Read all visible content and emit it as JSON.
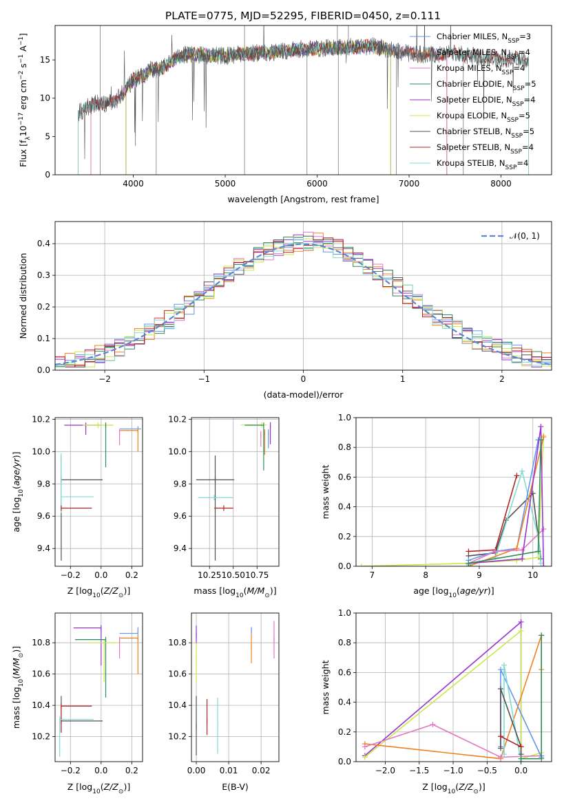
{
  "title": "PLATE=0775, MJD=52295, FIBERID=0450, z=0.111",
  "colors": {
    "Chabrier MILES": "#6495ed",
    "Salpeter MILES": "#f0801e",
    "Kroupa MILES": "#e377c2",
    "Chabrier ELODIE": "#2e8b57",
    "Salpeter ELODIE": "#9932cc",
    "Kroupa ELODIE": "#c9e84a",
    "Chabrier STELIB": "#505050",
    "Salpeter STELIB": "#b22222",
    "Kroupa STELIB": "#7fdbd4"
  },
  "chart_data": [
    {
      "type": "line",
      "name": "spectrum",
      "xlabel": "wavelength [Angstrom, rest frame]",
      "ylabel": "Flux [f_λ 10^-17 erg cm^-2 s^-1 A^-1]",
      "xlim": [
        3150,
        8550
      ],
      "ylim": [
        0,
        19.5
      ],
      "xticks": [
        "4000",
        "5000",
        "6000",
        "7000",
        "8000"
      ],
      "yticks": [
        "0",
        "5",
        "10",
        "15"
      ],
      "grid": false,
      "legend_position": "right",
      "series": [
        {
          "name": "Chabrier MILES, N_SSP=3"
        },
        {
          "name": "Salpeter MILES, N_SSP=4"
        },
        {
          "name": "Kroupa MILES, N_SSP=4"
        },
        {
          "name": "Chabrier ELODIE, N_SSP=5"
        },
        {
          "name": "Salpeter ELODIE, N_SSP=4"
        },
        {
          "name": "Kroupa ELODIE, N_SSP=5"
        },
        {
          "name": "Chabrier STELIB, N_SSP=5"
        },
        {
          "name": "Salpeter STELIB, N_SSP=4"
        },
        {
          "name": "Kroupa STELIB, N_SSP=4"
        }
      ],
      "continuum": {
        "x": [
          3400,
          3500,
          3600,
          3700,
          3800,
          3900,
          4000,
          4100,
          4200,
          4300,
          4400,
          4500,
          4600,
          4800,
          5000,
          5200,
          5500,
          5800,
          6000,
          6300,
          6600,
          6800,
          7000,
          7200,
          7500,
          7800,
          8000,
          8300
        ],
        "y": [
          8.0,
          8.8,
          9.4,
          9.2,
          9.6,
          10.8,
          12.4,
          12.9,
          13.8,
          13.9,
          14.6,
          15.4,
          15.8,
          15.6,
          15.5,
          15.8,
          16.0,
          16.4,
          16.5,
          16.6,
          16.8,
          16.3,
          15.8,
          15.7,
          15.8,
          15.3,
          15.2,
          15.0
        ]
      }
    },
    {
      "type": "step",
      "name": "residual histogram",
      "xlabel": "(data-model)/error",
      "ylabel": "Normed distribution",
      "xlim": [
        -2.5,
        2.5
      ],
      "ylim": [
        0,
        0.47
      ],
      "xticks": [
        "−2",
        "−1",
        "0",
        "1",
        "2"
      ],
      "yticks": [
        "0.0",
        "0.1",
        "0.2",
        "0.3",
        "0.4"
      ],
      "grid": true,
      "legend": "𝒩(0, 1)",
      "legend_position": "top-right",
      "normal_curve": {
        "mean": 0,
        "sigma": 1
      }
    },
    {
      "type": "errorbar",
      "name": "age vs metallicity",
      "xlabel": "Z [log₁₀(Z/Z☉)]",
      "ylabel": "age  [log₁₀(age/yr)]",
      "xlim": [
        -0.3,
        0.27
      ],
      "ylim": [
        9.29,
        10.21
      ],
      "xticks": [
        "−0.2",
        "0.0",
        "0.2"
      ],
      "yticks": [
        "9.4",
        "9.6",
        "9.8",
        "10.0",
        "10.2"
      ],
      "grid": true,
      "points": [
        {
          "model": "Salpeter ELODIE",
          "x": -0.1,
          "xerr": [
            0.14,
            0.1
          ],
          "y": 10.163,
          "yerr": [
            0.06,
            0.0
          ]
        },
        {
          "model": "Kroupa ELODIE",
          "x": -0.02,
          "xerr": [
            0.1,
            0.1
          ],
          "y": 10.163,
          "yerr": [
            0.0,
            0.0
          ]
        },
        {
          "model": "Chabrier ELODIE",
          "x": 0.03,
          "xerr": [
            0.0,
            0.0
          ],
          "y": 10.163,
          "yerr": [
            0.26,
            0.0
          ]
        },
        {
          "model": "Chabrier MILES",
          "x": 0.24,
          "xerr": [
            0.12,
            0.02
          ],
          "y": 10.14,
          "yerr": [
            0.0,
            0.0
          ]
        },
        {
          "model": "Salpeter MILES",
          "x": 0.24,
          "xerr": [
            0.12,
            0.0
          ],
          "y": 10.13,
          "yerr": [
            0.13,
            0.0
          ]
        },
        {
          "model": "Kroupa MILES",
          "x": 0.12,
          "xerr": [
            0.0,
            0.0
          ],
          "y": 10.12,
          "yerr": [
            0.08,
            0.0
          ]
        },
        {
          "model": "Chabrier STELIB",
          "x": -0.26,
          "xerr": [
            0.0,
            0.27
          ],
          "y": 9.825,
          "yerr": [
            0.5,
            0.15
          ]
        },
        {
          "model": "Kroupa STELIB",
          "x": -0.26,
          "xerr": [
            0.0,
            0.21
          ],
          "y": 9.72,
          "yerr": [
            0.1,
            0.27
          ]
        },
        {
          "model": "Salpeter STELIB",
          "x": -0.26,
          "xerr": [
            0.0,
            0.2
          ],
          "y": 9.65,
          "yerr": [
            0.0,
            0.0
          ]
        }
      ]
    },
    {
      "type": "errorbar",
      "name": "age vs mass",
      "xlabel": "mass [log₁₀(M/M☉)]",
      "ylabel": "",
      "xlim": [
        10.06,
        10.98
      ],
      "ylim": [
        9.29,
        10.21
      ],
      "xticks": [
        "10.25",
        "10.50",
        "10.75"
      ],
      "yticks": [
        "9.4",
        "9.6",
        "9.8",
        "10.0",
        "10.2"
      ],
      "grid": true,
      "points": [
        {
          "model": "Salpeter ELODIE",
          "x": 10.89,
          "xerr": [
            0.0,
            0.0
          ],
          "y": 10.165,
          "yerr": [
            0.12,
            0.0
          ]
        },
        {
          "model": "Kroupa ELODIE",
          "x": 10.8,
          "xerr": [
            0.22,
            0.05
          ],
          "y": 10.165,
          "yerr": [
            0.0,
            0.0
          ]
        },
        {
          "model": "Chabrier ELODIE",
          "x": 10.82,
          "xerr": [
            0.2,
            0.0
          ],
          "y": 10.163,
          "yerr": [
            0.28,
            0.0
          ]
        },
        {
          "model": "Salpeter MILES",
          "x": 10.83,
          "xerr": [
            0.0,
            0.0
          ],
          "y": 10.12,
          "yerr": [
            0.14,
            0.0
          ]
        },
        {
          "model": "Chabrier MILES",
          "x": 10.87,
          "xerr": [
            0.0,
            0.0
          ],
          "y": 10.12,
          "yerr": [
            0.1,
            0.0
          ]
        },
        {
          "model": "Kroupa MILES",
          "x": 10.79,
          "xerr": [
            0.0,
            0.0
          ],
          "y": 10.11,
          "yerr": [
            0.08,
            0.0
          ]
        },
        {
          "model": "Chabrier STELIB",
          "x": 10.31,
          "xerr": [
            0.2,
            0.2
          ],
          "y": 9.825,
          "yerr": [
            0.5,
            0.15
          ]
        },
        {
          "model": "Kroupa STELIB",
          "x": 10.3,
          "xerr": [
            0.17,
            0.2
          ],
          "y": 9.715,
          "yerr": [
            0.0,
            0.0
          ]
        },
        {
          "model": "Salpeter STELIB",
          "x": 10.4,
          "xerr": [
            0.1,
            0.1
          ],
          "y": 9.65,
          "yerr": [
            0.0,
            0.0
          ]
        }
      ]
    },
    {
      "type": "line",
      "name": "mass weight vs age",
      "xlabel": "age  [log₁₀(age/yr)]",
      "ylabel": "mass weight",
      "xlim": [
        6.7,
        10.35
      ],
      "ylim": [
        0,
        1.0
      ],
      "xticks": [
        "7",
        "8",
        "9",
        "10"
      ],
      "yticks": [
        "0.0",
        "0.2",
        "0.4",
        "0.6",
        "0.8",
        "1.0"
      ],
      "grid": true,
      "series": [
        {
          "model": "Kroupa ELODIE",
          "x": [
            6.8,
            8.8,
            9.7,
            10.1,
            10.2
          ],
          "y": [
            0.0,
            0.02,
            0.04,
            0.06,
            0.88
          ]
        },
        {
          "model": "Salpeter STELIB",
          "x": [
            8.8,
            9.3,
            9.7
          ],
          "y": [
            0.1,
            0.11,
            0.61
          ]
        },
        {
          "model": "Chabrier STELIB",
          "x": [
            8.8,
            9.3,
            9.5,
            10.0,
            10.15
          ],
          "y": [
            0.07,
            0.09,
            0.31,
            0.49,
            0.05
          ]
        },
        {
          "model": "Kroupa STELIB",
          "x": [
            8.8,
            9.3,
            9.8,
            10.1,
            10.15
          ],
          "y": [
            0.01,
            0.06,
            0.64,
            0.2,
            0.02
          ]
        },
        {
          "model": "Chabrier MILES",
          "x": [
            8.8,
            9.3,
            9.7,
            10.1
          ],
          "y": [
            0.04,
            0.1,
            0.12,
            0.85
          ]
        },
        {
          "model": "Salpeter MILES",
          "x": [
            8.8,
            9.7,
            10.2
          ],
          "y": [
            0.0,
            0.12,
            0.87
          ]
        },
        {
          "model": "Kroupa MILES",
          "x": [
            8.8,
            9.3,
            9.8,
            10.2
          ],
          "y": [
            0.02,
            0.1,
            0.11,
            0.25
          ]
        },
        {
          "model": "Salpeter ELODIE",
          "x": [
            8.8,
            9.8,
            10.15,
            10.2
          ],
          "y": [
            0.02,
            0.05,
            0.94,
            0.0
          ]
        },
        {
          "model": "Chabrier ELODIE",
          "x": [
            8.8,
            10.1,
            10.15
          ],
          "y": [
            0.02,
            0.1,
            0.85
          ]
        }
      ]
    },
    {
      "type": "errorbar",
      "name": "mass vs metallicity",
      "xlabel": "Z [log₁₀(Z/Z☉)]",
      "ylabel": "mass [log₁₀(M/M☉)]",
      "xlim": [
        -0.3,
        0.27
      ],
      "ylim": [
        10.04,
        10.99
      ],
      "xticks": [
        "−0.2",
        "0.0",
        "0.2"
      ],
      "yticks": [
        "10.2",
        "10.4",
        "10.6",
        "10.8"
      ],
      "grid": true,
      "points": [
        {
          "model": "Salpeter ELODIE",
          "x": -0.0,
          "xerr": [
            0.18,
            0.0
          ],
          "y": 10.895,
          "yerr": [
            0.24,
            0.0
          ]
        },
        {
          "model": "Chabrier MILES",
          "x": 0.24,
          "xerr": [
            0.12,
            0.0
          ],
          "y": 10.86,
          "yerr": [
            0.0,
            0.04
          ]
        },
        {
          "model": "Salpeter MILES",
          "x": 0.24,
          "xerr": [
            0.12,
            0.0
          ],
          "y": 10.83,
          "yerr": [
            0.23,
            0.0
          ]
        },
        {
          "model": "Chabrier ELODIE",
          "x": 0.03,
          "xerr": [
            0.2,
            0.0
          ],
          "y": 10.82,
          "yerr": [
            0.37,
            0.0
          ]
        },
        {
          "model": "Kroupa ELODIE",
          "x": 0.02,
          "xerr": [
            0.1,
            0.1
          ],
          "y": 10.8,
          "yerr": [
            0.25,
            0.0
          ]
        },
        {
          "model": "Kroupa MILES",
          "x": 0.12,
          "xerr": [
            0.0,
            0.0
          ],
          "y": 10.82,
          "yerr": [
            0.12,
            0.0
          ]
        },
        {
          "model": "Chabrier STELIB",
          "x": -0.26,
          "xerr": [
            0.0,
            0.27
          ],
          "y": 10.3,
          "yerr": [
            0.07,
            0.16
          ]
        },
        {
          "model": "Salpeter STELIB",
          "x": -0.26,
          "xerr": [
            0.0,
            0.2
          ],
          "y": 10.395,
          "yerr": [
            0.17,
            0.0
          ]
        },
        {
          "model": "Kroupa STELIB",
          "x": -0.27,
          "xerr": [
            0.0,
            0.22
          ],
          "y": 10.31,
          "yerr": [
            0.24,
            0.0
          ]
        }
      ]
    },
    {
      "type": "errorbar",
      "name": "mass vs extinction",
      "xlabel": "E(B-V)",
      "ylabel": "",
      "xlim": [
        -0.0015,
        0.0255
      ],
      "ylim": [
        10.04,
        10.99
      ],
      "xticks": [
        "0.00",
        "0.01",
        "0.02"
      ],
      "yticks": [
        "10.2",
        "10.4",
        "10.6",
        "10.8"
      ],
      "grid": true,
      "points": [
        {
          "model": "Salpeter ELODIE",
          "x": 0.0,
          "y": 10.85,
          "yerr": [
            0.06,
            0.06
          ]
        },
        {
          "model": "Kroupa ELODIE",
          "x": 0.0,
          "y": 10.7,
          "yerr": [
            0.15,
            0.1
          ]
        },
        {
          "model": "Chabrier STELIB",
          "x": 0.0,
          "y": 10.27,
          "yerr": [
            0.19,
            0.19
          ]
        },
        {
          "model": "Salpeter STELIB",
          "x": 0.0033,
          "y": 10.3,
          "yerr": [
            0.09,
            0.14
          ]
        },
        {
          "model": "Kroupa STELIB",
          "x": 0.0066,
          "y": 10.27,
          "yerr": [
            0.18,
            0.18
          ]
        },
        {
          "model": "Salpeter MILES",
          "x": 0.017,
          "y": 10.77,
          "yerr": [
            0.1,
            0.1
          ]
        },
        {
          "model": "Chabrier MILES",
          "x": 0.017,
          "y": 10.88,
          "yerr": [
            0.02,
            0.02
          ]
        },
        {
          "model": "Kroupa MILES",
          "x": 0.024,
          "y": 10.82,
          "yerr": [
            0.12,
            0.12
          ]
        }
      ]
    },
    {
      "type": "line",
      "name": "mass weight vs metallicity",
      "xlabel": "Z [log₁₀(Z/Z☉)]",
      "ylabel": "mass weight",
      "xlim": [
        -2.43,
        0.45
      ],
      "ylim": [
        0,
        1.0
      ],
      "xticks": [
        "−2.0",
        "−1.5",
        "−1.0",
        "−0.5",
        "0.0"
      ],
      "yticks": [
        "0.0",
        "0.2",
        "0.4",
        "0.6",
        "0.8",
        "1.0"
      ],
      "grid": true,
      "series": [
        {
          "model": "Salpeter ELODIE",
          "x": [
            -2.3,
            0.0,
            0.0
          ],
          "y": [
            0.04,
            0.94,
            0.0
          ]
        },
        {
          "model": "Kroupa ELODIE",
          "x": [
            -2.3,
            0.0,
            0.0,
            0.3
          ],
          "y": [
            0.03,
            0.88,
            0.02,
            0.06
          ]
        },
        {
          "model": "Salpeter MILES",
          "x": [
            -2.3,
            -0.3,
            0.3,
            0.3
          ],
          "y": [
            0.12,
            0.02,
            0.85,
            0.62
          ]
        },
        {
          "model": "Kroupa MILES",
          "x": [
            -2.3,
            -1.3,
            -0.3,
            0.3
          ],
          "y": [
            0.1,
            0.25,
            0.03,
            0.04
          ]
        },
        {
          "model": "Chabrier MILES",
          "x": [
            -0.3,
            -0.3,
            0.3
          ],
          "y": [
            0.1,
            0.62,
            0.03
          ]
        },
        {
          "model": "Kroupa STELIB",
          "x": [
            -0.25,
            -0.25,
            0.0
          ],
          "y": [
            0.05,
            0.65,
            0.0
          ]
        },
        {
          "model": "Chabrier STELIB",
          "x": [
            -0.3,
            -0.3,
            0.0,
            0.0
          ],
          "y": [
            0.09,
            0.49,
            0.1,
            0.05
          ]
        },
        {
          "model": "Salpeter STELIB",
          "x": [
            -0.3,
            0.0
          ],
          "y": [
            0.17,
            0.1
          ]
        },
        {
          "model": "Chabrier ELODIE",
          "x": [
            0.0,
            0.3,
            0.3
          ],
          "y": [
            0.02,
            0.02,
            0.85
          ]
        }
      ]
    }
  ]
}
